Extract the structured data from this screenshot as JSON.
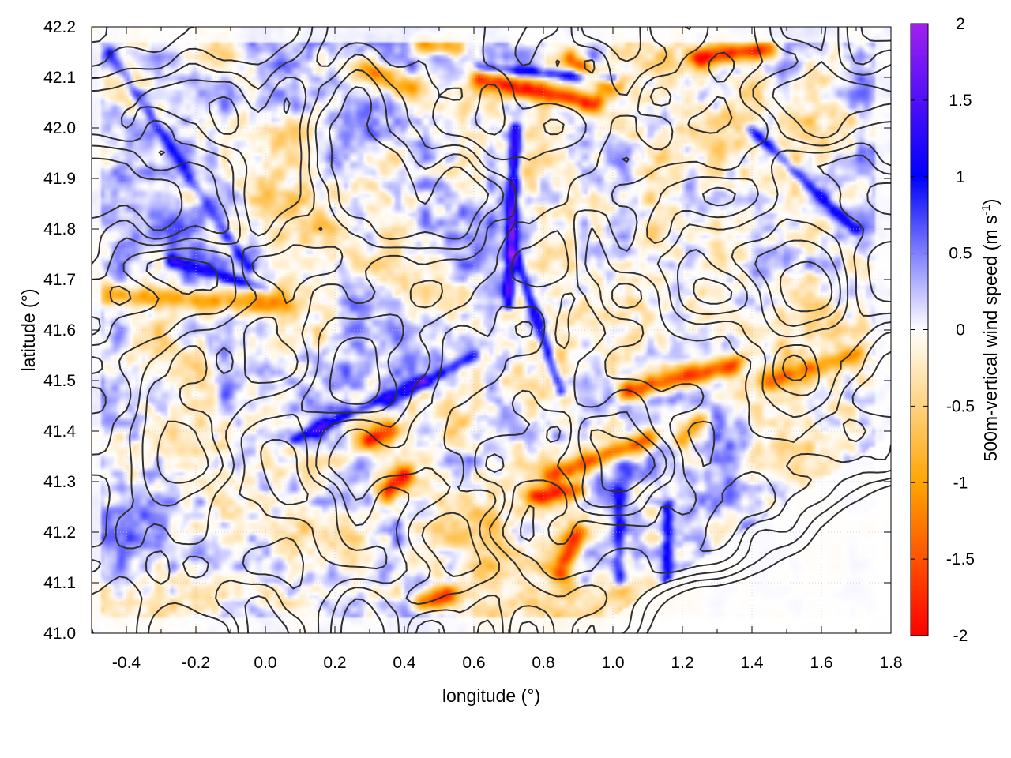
{
  "chart_data": {
    "type": "heatmap",
    "title": "",
    "xlabel": "longitude (°)",
    "ylabel": "latitude (°)",
    "colorbar_label": "500m-vertical wind speed (m s",
    "colorbar_label_sup": "-1",
    "colorbar_label_close": ")",
    "xlim": [
      -0.5,
      1.8
    ],
    "ylim": [
      41.0,
      42.2
    ],
    "clim": [
      -2,
      2
    ],
    "x_ticks": [
      -0.4,
      -0.2,
      0.0,
      0.2,
      0.4,
      0.6,
      0.8,
      1.0,
      1.2,
      1.4,
      1.6,
      1.8
    ],
    "x_tick_labels": [
      "-0.4",
      "-0.2",
      "0.0",
      "0.2",
      "0.4",
      "0.6",
      "0.8",
      "1.0",
      "1.2",
      "1.4",
      "1.6",
      "1.8"
    ],
    "y_ticks": [
      41.0,
      41.1,
      41.2,
      41.3,
      41.4,
      41.5,
      41.6,
      41.7,
      41.8,
      41.9,
      42.0,
      42.1,
      42.2
    ],
    "y_tick_labels": [
      "41.0",
      "41.1",
      "41.2",
      "41.3",
      "41.4",
      "41.5",
      "41.6",
      "41.7",
      "41.8",
      "41.9",
      "42.0",
      "42.1",
      "42.2"
    ],
    "c_ticks": [
      2,
      1.5,
      1,
      0.5,
      0,
      -0.5,
      -1,
      -1.5,
      -2
    ],
    "c_tick_labels": [
      "2",
      "1.5",
      "1",
      "0.5",
      "0",
      "-0.5",
      "-1",
      "-1.5",
      "-2"
    ],
    "colormap": [
      {
        "value": -2,
        "color": "#ff0000"
      },
      {
        "value": -1,
        "color": "#ffa500"
      },
      {
        "value": 0,
        "color": "#ffffff"
      },
      {
        "value": 1,
        "color": "#0000ff"
      },
      {
        "value": 2,
        "color": "#a020f0"
      }
    ],
    "grid": true,
    "contours": true,
    "contour_color": "#303030",
    "features": [
      {
        "kind": "updraft_line",
        "from": [
          -0.45,
          42.15
        ],
        "to": [
          -0.05,
          41.72
        ],
        "w": 0.7
      },
      {
        "kind": "updraft_line",
        "from": [
          0.72,
          42.0
        ],
        "to": [
          0.7,
          41.65
        ],
        "w": 1.4
      },
      {
        "kind": "updraft_line",
        "from": [
          0.72,
          41.75
        ],
        "to": [
          0.85,
          41.48
        ],
        "w": 1.2
      },
      {
        "kind": "updraft_line",
        "from": [
          -0.28,
          41.74
        ],
        "to": [
          0.0,
          41.68
        ],
        "w": 0.9
      },
      {
        "kind": "updraft_line",
        "from": [
          0.08,
          41.38
        ],
        "to": [
          0.45,
          41.5
        ],
        "w": 0.9
      },
      {
        "kind": "updraft_line",
        "from": [
          1.02,
          41.28
        ],
        "to": [
          1.02,
          41.1
        ],
        "w": 0.8
      },
      {
        "kind": "updraft_line",
        "from": [
          1.16,
          41.25
        ],
        "to": [
          1.16,
          41.1
        ],
        "w": 1.0
      },
      {
        "kind": "updraft_line",
        "from": [
          0.62,
          42.12
        ],
        "to": [
          1.0,
          42.1
        ],
        "w": 1.0
      },
      {
        "kind": "updraft_line",
        "from": [
          1.4,
          42.0
        ],
        "to": [
          1.7,
          41.8
        ],
        "w": 0.8
      },
      {
        "kind": "updraft_line",
        "from": [
          0.35,
          41.45
        ],
        "to": [
          0.6,
          41.55
        ],
        "w": 0.8
      },
      {
        "kind": "downdraft_band",
        "from": [
          0.62,
          42.1
        ],
        "to": [
          0.95,
          42.05
        ],
        "w": -1.8
      },
      {
        "kind": "downdraft_band",
        "from": [
          1.25,
          42.14
        ],
        "to": [
          1.45,
          42.16
        ],
        "w": -1.7
      },
      {
        "kind": "downdraft_band",
        "from": [
          0.88,
          42.14
        ],
        "to": [
          1.0,
          42.08
        ],
        "w": -1.4
      },
      {
        "kind": "downdraft_band",
        "from": [
          0.28,
          42.12
        ],
        "to": [
          0.42,
          42.08
        ],
        "w": -1.2
      },
      {
        "kind": "downdraft_band",
        "from": [
          0.45,
          42.17
        ],
        "to": [
          0.55,
          42.16
        ],
        "w": -1.3
      },
      {
        "kind": "downdraft_band",
        "from": [
          1.05,
          41.48
        ],
        "to": [
          1.35,
          41.53
        ],
        "w": -1.7
      },
      {
        "kind": "downdraft_band",
        "from": [
          0.82,
          41.31
        ],
        "to": [
          1.1,
          41.38
        ],
        "w": -1.5
      },
      {
        "kind": "downdraft_band",
        "from": [
          0.78,
          41.27
        ],
        "to": [
          0.9,
          41.28
        ],
        "w": -1.6
      },
      {
        "kind": "downdraft_band",
        "from": [
          0.35,
          41.28
        ],
        "to": [
          0.4,
          41.31
        ],
        "w": -1.8
      },
      {
        "kind": "downdraft_band",
        "from": [
          0.3,
          41.38
        ],
        "to": [
          0.36,
          41.4
        ],
        "w": -1.6
      },
      {
        "kind": "downdraft_band",
        "from": [
          0.85,
          41.12
        ],
        "to": [
          0.9,
          41.2
        ],
        "w": -1.4
      },
      {
        "kind": "downdraft_band",
        "from": [
          0.45,
          41.06
        ],
        "to": [
          0.52,
          41.07
        ],
        "w": -1.6
      },
      {
        "kind": "downdraft_band",
        "from": [
          -0.45,
          41.67
        ],
        "to": [
          0.05,
          41.65
        ],
        "w": -0.9
      },
      {
        "kind": "downdraft_band",
        "from": [
          1.45,
          41.5
        ],
        "to": [
          1.7,
          41.55
        ],
        "w": -1.0
      },
      {
        "kind": "downdraft_band",
        "from": [
          1.2,
          41.38
        ],
        "to": [
          1.25,
          41.42
        ],
        "w": -1.3
      }
    ]
  }
}
